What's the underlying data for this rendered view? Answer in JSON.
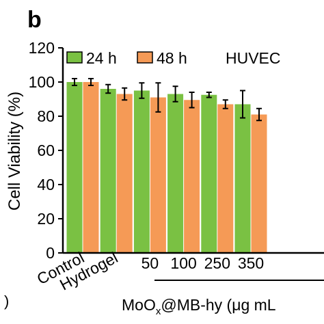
{
  "panel_label": "b",
  "left_edge_fragment": ")",
  "chart_data": {
    "type": "bar",
    "ylabel": "Cell Viability (%)",
    "ylim": [
      0,
      120
    ],
    "yticks": [
      0,
      20,
      40,
      60,
      80,
      100,
      120
    ],
    "categories": [
      "Control",
      "Hydrogel",
      "50",
      "100",
      "250",
      "350"
    ],
    "group_label": "MoO",
    "group_label_sub": "x",
    "group_label_rest": "@MB-hy (μg mL",
    "annotation": "HUVEC",
    "legend_position": "top",
    "series": [
      {
        "name": "24 h",
        "color": "#7ac143",
        "values": [
          100,
          96,
          95,
          93,
          92.5,
          87
        ],
        "errors": [
          2,
          2.5,
          4.5,
          4.5,
          1.5,
          8
        ]
      },
      {
        "name": "48 h",
        "color": "#f59a56",
        "values": [
          100,
          93,
          91,
          89.5,
          87,
          81
        ],
        "errors": [
          2,
          3.5,
          8.5,
          4.5,
          2.5,
          3.5
        ]
      }
    ]
  }
}
